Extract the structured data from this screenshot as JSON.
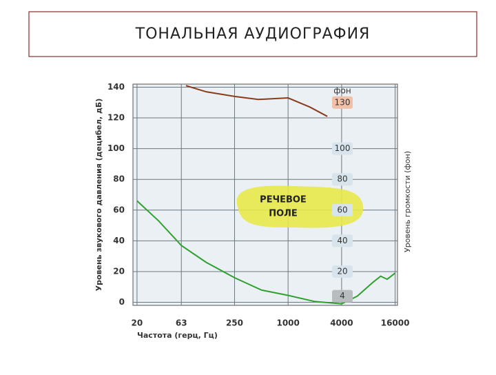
{
  "title": "ТОНАЛЬНАЯ АУДИОГРАФИЯ",
  "chart_data": {
    "type": "line",
    "x_label": "Частота (герц, Гц)",
    "y_label": "Уровень звукового давления   (децибел, дБ)",
    "y2_label": "Уровень громкости   (фон)",
    "log_x": true,
    "grid": true,
    "xlim": [
      18,
      17000
    ],
    "xticks": [
      20,
      63,
      250,
      1000,
      4000,
      16000
    ],
    "ylim": [
      -2,
      142
    ],
    "yticks": [
      0,
      20,
      40,
      60,
      80,
      100,
      120,
      140
    ],
    "series": [
      {
        "color": "#2ea02e",
        "x": [
          20,
          35,
          63,
          120,
          250,
          500,
          1000,
          2000,
          4000,
          6000,
          9000,
          11000,
          13000,
          16000
        ],
        "values": [
          66,
          53,
          37,
          26,
          16,
          8,
          4.5,
          0.5,
          -1,
          4,
          13,
          17,
          15,
          19
        ]
      },
      {
        "color": "#8b3a1a",
        "x": [
          71,
          120,
          250,
          462,
          1000,
          1766,
          2760
        ],
        "values": [
          141,
          137,
          134,
          132,
          133,
          127,
          121
        ]
      }
    ],
    "annotations": {
      "unit": "фон",
      "levels": [
        130,
        100,
        80,
        60,
        40,
        20,
        4
      ],
      "speech_area": "РЕЧЕВОЕ ПОЛЕ"
    }
  }
}
